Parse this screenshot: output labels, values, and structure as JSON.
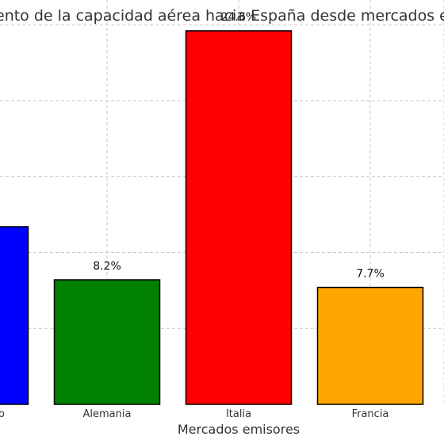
{
  "chart_data": {
    "type": "bar",
    "title": "ento de la capacidad aérea hacia España desde mercados em",
    "xlabel": "Mercados emisores",
    "ylabel": "",
    "categories": [
      "o",
      "Alemania",
      "Italia",
      "Francia"
    ],
    "values": [
      11.7,
      8.2,
      24.6,
      7.7
    ],
    "data_labels": [
      "",
      "8.2%",
      "24.6%",
      "7.7%"
    ],
    "colors": [
      "#0000ff",
      "#008000",
      "#ff0000",
      "#ffa500"
    ],
    "ylim": [
      0,
      25.9
    ],
    "grid": true
  }
}
